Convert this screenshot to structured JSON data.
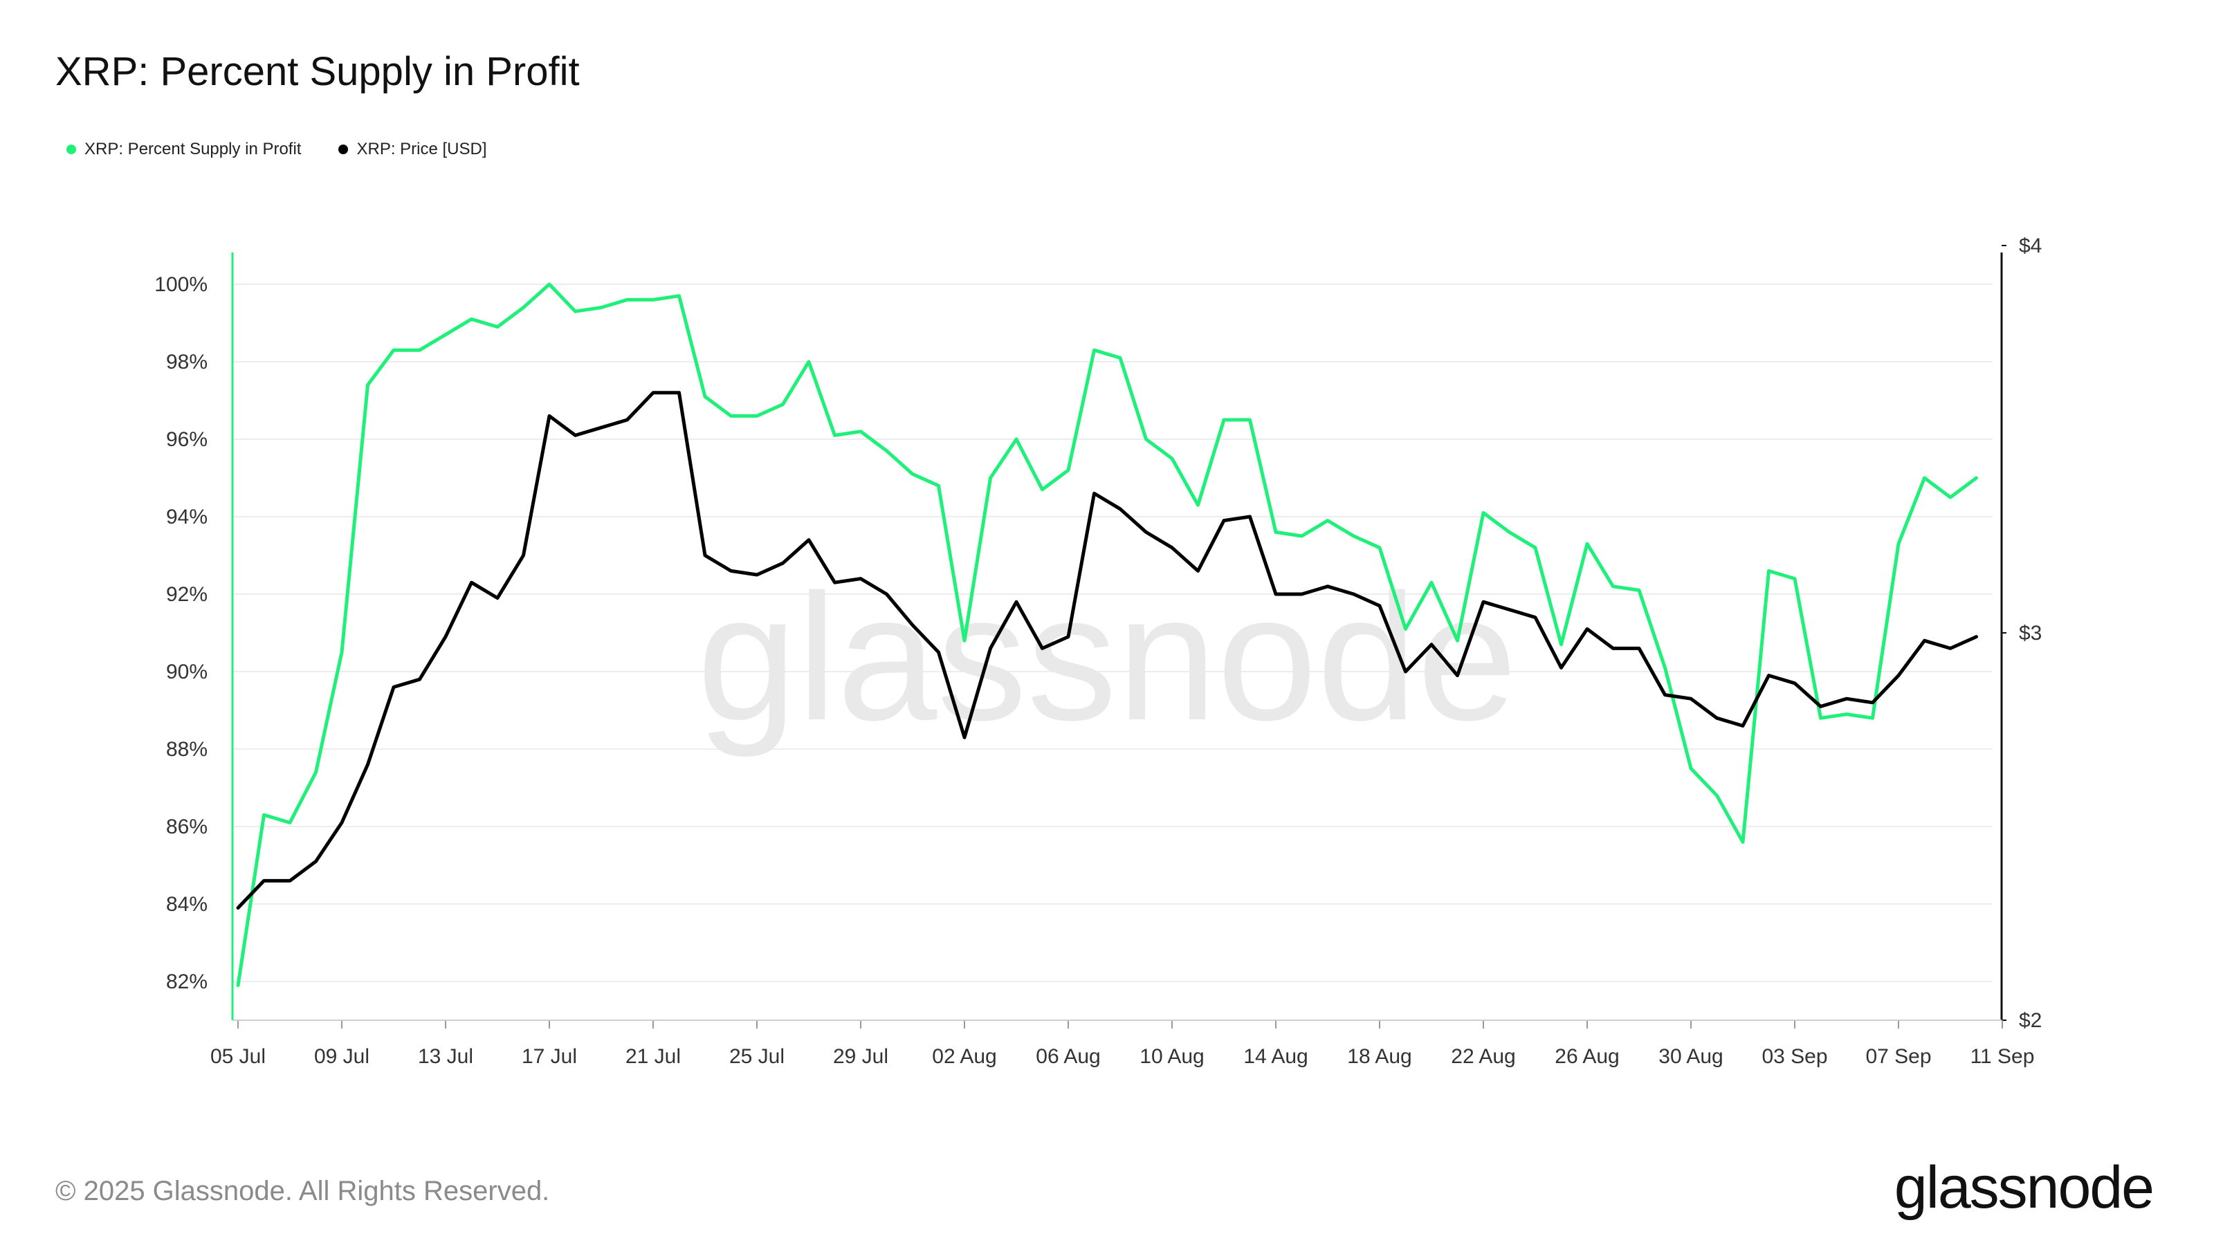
{
  "title": "XRP: Percent Supply in Profit",
  "legend": [
    {
      "label": "XRP: Percent Supply in Profit",
      "color": "#1ef07a"
    },
    {
      "label": "XRP: Price [USD]",
      "color": "#000000"
    }
  ],
  "watermark": "glassnode",
  "footer": {
    "copyright": "© 2025 Glassnode. All Rights Reserved.",
    "logo": "glassnode"
  },
  "chart_data": {
    "type": "line",
    "x_start": "05 Jul",
    "x_step_days": 1,
    "x_ticks": [
      "05 Jul",
      "09 Jul",
      "13 Jul",
      "17 Jul",
      "21 Jul",
      "25 Jul",
      "29 Jul",
      "02 Aug",
      "06 Aug",
      "10 Aug",
      "14 Aug",
      "18 Aug",
      "22 Aug",
      "26 Aug",
      "30 Aug",
      "03 Sep",
      "07 Sep",
      "11 Sep"
    ],
    "y_left": {
      "ticks": [
        "82%",
        "84%",
        "86%",
        "88%",
        "90%",
        "92%",
        "94%",
        "96%",
        "98%",
        "100%"
      ],
      "range": [
        81,
        101
      ]
    },
    "y_right": {
      "ticks": [
        "$2",
        "$3",
        "$4"
      ],
      "range": [
        2,
        4
      ]
    },
    "grid": true,
    "legend_position": "top-left",
    "series": [
      {
        "name": "XRP: Percent Supply in Profit",
        "axis": "left",
        "color": "#1ef07a",
        "values": [
          81.9,
          86.3,
          86.1,
          87.4,
          90.5,
          97.4,
          98.3,
          98.3,
          98.7,
          99.1,
          98.9,
          99.4,
          100.0,
          99.3,
          99.4,
          99.6,
          99.6,
          99.7,
          97.1,
          96.6,
          96.6,
          96.9,
          98.0,
          96.1,
          96.2,
          95.7,
          95.1,
          94.8,
          90.8,
          95.0,
          96.0,
          94.7,
          95.2,
          98.3,
          98.1,
          96.0,
          95.5,
          94.3,
          96.5,
          96.5,
          93.6,
          93.5,
          93.9,
          93.5,
          93.2,
          91.1,
          92.3,
          90.8,
          94.1,
          93.6,
          93.2,
          90.7,
          93.3,
          92.2,
          92.1,
          90.1,
          87.5,
          86.8,
          85.6,
          92.6,
          92.4,
          88.8,
          88.9,
          88.8,
          93.3,
          95.0,
          94.5,
          95.0
        ]
      },
      {
        "name": "XRP: Price [USD]",
        "axis": "right",
        "color": "#000000",
        "values": [
          2.29,
          2.36,
          2.36,
          2.41,
          2.51,
          2.66,
          2.86,
          2.88,
          2.99,
          3.13,
          3.09,
          3.2,
          3.56,
          3.51,
          3.53,
          3.55,
          3.62,
          3.62,
          3.2,
          3.16,
          3.15,
          3.18,
          3.24,
          3.13,
          3.14,
          3.1,
          3.02,
          2.95,
          2.73,
          2.96,
          3.08,
          2.96,
          2.99,
          3.36,
          3.32,
          3.26,
          3.22,
          3.16,
          3.29,
          3.3,
          3.1,
          3.1,
          3.12,
          3.1,
          3.07,
          2.9,
          2.97,
          2.89,
          3.08,
          3.06,
          3.04,
          2.91,
          3.01,
          2.96,
          2.96,
          2.84,
          2.83,
          2.78,
          2.76,
          2.89,
          2.87,
          2.81,
          2.83,
          2.82,
          2.89,
          2.98,
          2.96,
          2.99
        ]
      }
    ]
  }
}
